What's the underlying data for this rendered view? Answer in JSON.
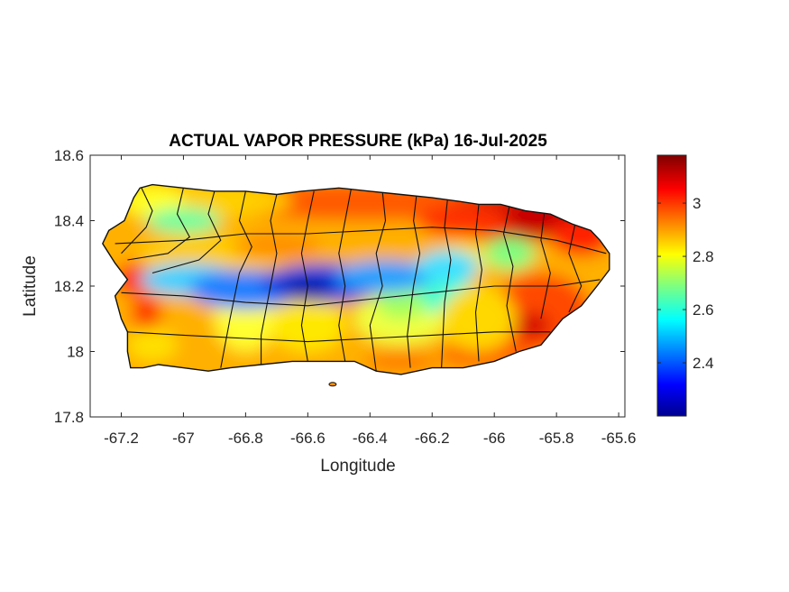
{
  "title": "ACTUAL VAPOR PRESSURE (kPa) 16-Jul-2025",
  "xlabel": "Longitude",
  "ylabel": "Latitude",
  "map_data": {
    "type": "filled-contour-map",
    "region": "Puerto Rico (municipality boundaries)",
    "variable": "Actual vapor pressure",
    "units": "kPa",
    "date": "16-Jul-2025",
    "xlim": [
      -67.3,
      -65.58
    ],
    "ylim": [
      17.8,
      18.6
    ],
    "x_ticks": [
      -67.2,
      -67,
      -66.8,
      -66.6,
      -66.4,
      -66.2,
      -66,
      -65.8,
      -65.6
    ],
    "x_tick_labels": [
      "-67.2",
      "-67",
      "-66.8",
      "-66.6",
      "-66.4",
      "-66.2",
      "-66",
      "-65.8",
      "-65.6"
    ],
    "y_ticks": [
      17.8,
      18,
      18.2,
      18.4,
      18.6
    ],
    "y_tick_labels": [
      "17.8",
      "18",
      "18.2",
      "18.4",
      "18.6"
    ],
    "colorbar": {
      "colormap": "jet",
      "range": [
        2.2,
        3.18
      ],
      "ticks": [
        2.4,
        2.6,
        2.8,
        3
      ],
      "tick_labels": [
        "2.4",
        "2.6",
        "2.8",
        "3"
      ],
      "placement": "right"
    },
    "grid": false
  }
}
